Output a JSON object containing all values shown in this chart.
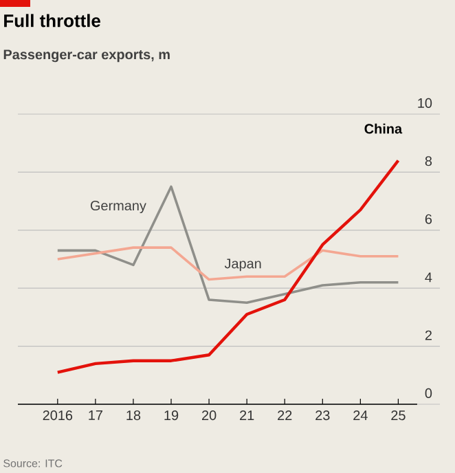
{
  "chart_data": {
    "type": "line",
    "title": "Full throttle",
    "subtitle": "Passenger-car exports, m",
    "categories": [
      "2016",
      "17",
      "18",
      "19",
      "20",
      "21",
      "22",
      "23",
      "24",
      "25"
    ],
    "series": [
      {
        "name": "Germany",
        "color": "#8f8f8a",
        "values": [
          5.3,
          5.3,
          4.8,
          7.5,
          3.6,
          3.5,
          3.8,
          4.1,
          4.2,
          4.2
        ]
      },
      {
        "name": "Japan",
        "color": "#f4a792",
        "values": [
          5.0,
          5.2,
          5.4,
          5.4,
          4.3,
          4.4,
          4.4,
          5.3,
          5.1,
          5.1
        ]
      },
      {
        "name": "China",
        "color": "#e3120b",
        "values": [
          1.1,
          1.4,
          1.5,
          1.5,
          1.7,
          3.1,
          3.6,
          5.5,
          6.7,
          8.4
        ]
      }
    ],
    "ylim": [
      0,
      10
    ],
    "yticks": [
      0,
      2,
      4,
      6,
      8,
      10
    ],
    "grid": "y",
    "annotations": [
      "Source: ITC"
    ]
  }
}
